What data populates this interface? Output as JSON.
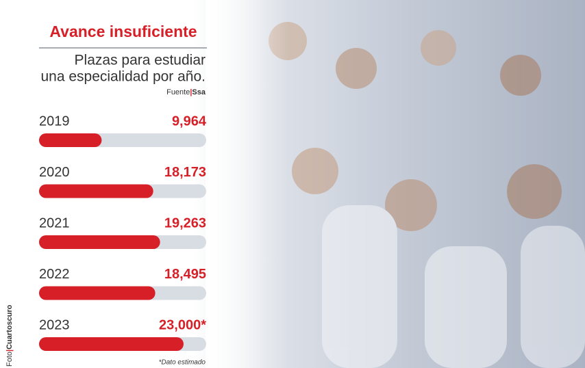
{
  "chart_data": {
    "type": "bar",
    "orientation": "horizontal",
    "title": "Avance insuficiente",
    "subtitle": [
      "Plazas para estudiar",
      "una especialidad por año."
    ],
    "source_label": "Fuente",
    "source": "Ssa",
    "categories": [
      "2019",
      "2020",
      "2021",
      "2022",
      "2023"
    ],
    "values": [
      9964,
      18173,
      19263,
      18495,
      23000
    ],
    "value_labels": [
      "9,964",
      "18,173",
      "19,263",
      "18,495",
      "23,000*"
    ],
    "color": "#d71f27",
    "track_color": "#d8dce3",
    "xlim": [
      0,
      26600
    ],
    "note": "*Dato estimado",
    "photo_label": "Foto",
    "photo_credit": "Cuartoscuro"
  }
}
